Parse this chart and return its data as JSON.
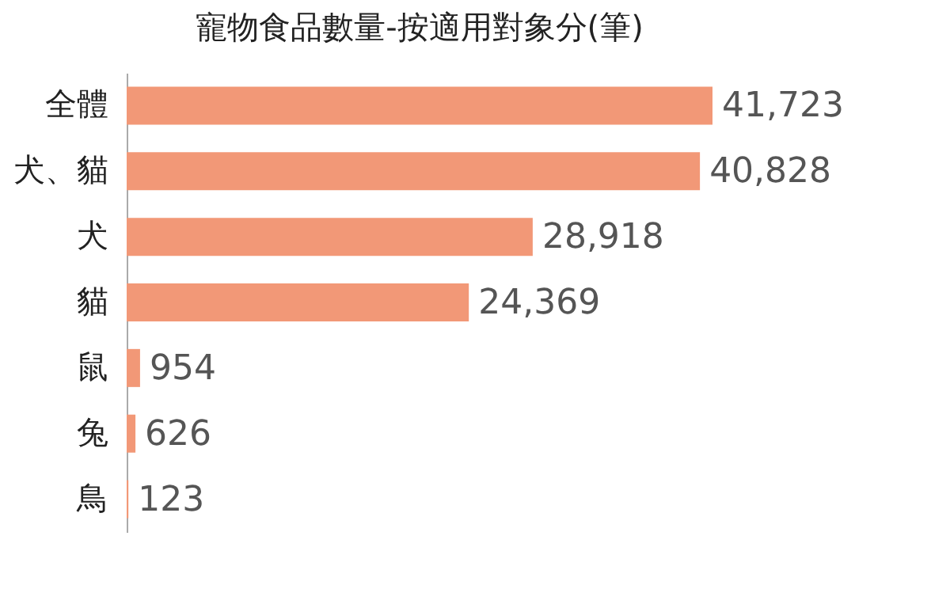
{
  "chart_data": {
    "type": "bar",
    "title": "寵物食品數量-按適用對象分(筆)",
    "orientation": "horizontal",
    "categories": [
      "全體",
      "犬、貓",
      "犬",
      "貓",
      "鼠",
      "兔",
      "鳥"
    ],
    "values": [
      41723,
      40828,
      28918,
      24369,
      954,
      626,
      123
    ],
    "value_labels": [
      "41,723",
      "40,828",
      "28,918",
      "24,369",
      "954",
      "626",
      "123"
    ],
    "color": "#f29877"
  }
}
